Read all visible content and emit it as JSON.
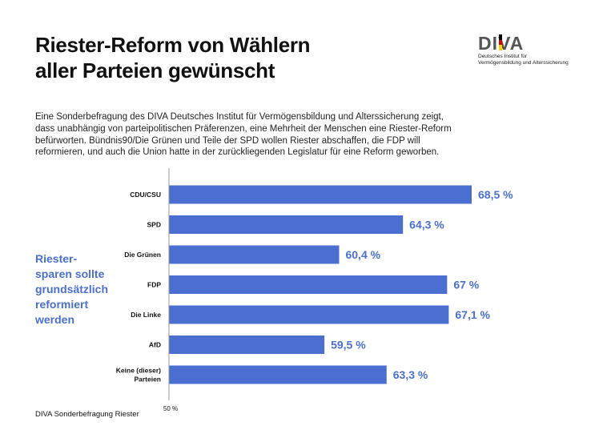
{
  "title_lines": [
    "Riester-Reform von Wählern",
    "aller Parteien gewünscht"
  ],
  "logo": {
    "word": "DIVA",
    "subtitle_lines": [
      "Deutsches Institut für",
      "Vermögensbildung und Alterssicherung"
    ],
    "flag_colors": [
      "#000000",
      "#dd0000",
      "#ffce00"
    ]
  },
  "intro": "Eine Sonderbefragung des DIVA Deutsches Institut für Vermögensbildung und Alterssicherung zeigt, dass unabhängig von parteipolitischen Präferenzen, eine Mehrheit der Menschen eine Riester-Reform befürworten. Bündnis90/Die Grünen und Teile der SPD wollen Riester abschaffen, die FDP will reformieren, und auch die Union hatte in der zurückliegenden Legislatur für eine Reform geworben.",
  "side_label_lines": [
    "Riester-",
    "sparen sollte",
    "grundsätzlich",
    "reformiert",
    "werden"
  ],
  "source": "DIVA Sonderbefragung Riester",
  "colors": {
    "bar": "#4a6fd1",
    "value_text": "#4a6fd1",
    "axis": "#999999"
  },
  "chart_data": {
    "type": "bar",
    "orientation": "horizontal",
    "categories": [
      "CDU/CSU",
      "SPD",
      "Die Grünen",
      "FDP",
      "Die Linke",
      "AfD",
      "Keine (dieser) Parteien"
    ],
    "values": [
      68.5,
      64.3,
      60.4,
      67,
      67.1,
      59.5,
      63.3
    ],
    "value_labels": [
      "68,5 %",
      "64,3 %",
      "60,4 %",
      "67 %",
      "67,1 %",
      "59,5 %",
      "63,3 %"
    ],
    "xlim": [
      50,
      70
    ],
    "tick_label": "50 %",
    "unit": "%"
  }
}
